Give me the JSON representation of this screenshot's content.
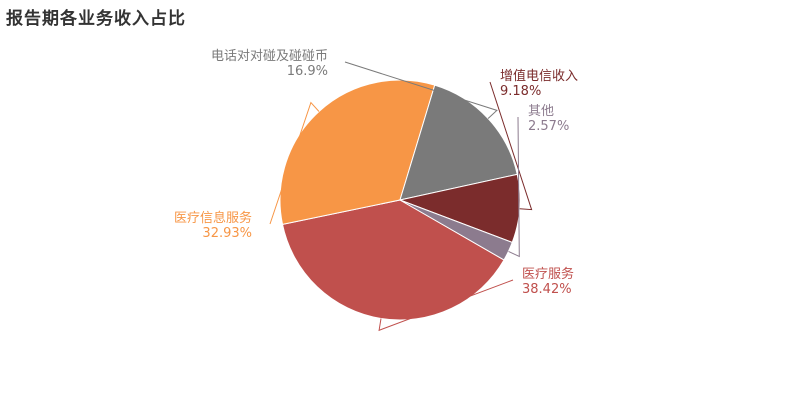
{
  "chart_data": {
    "type": "pie",
    "title": "报告期各业务收入占比",
    "slices": [
      {
        "name": "医疗服务",
        "value": 38.42,
        "label": "38.42%",
        "color": "#c0504d"
      },
      {
        "name": "医疗信息服务",
        "value": 32.93,
        "label": "32.93%",
        "color": "#f79646"
      },
      {
        "name": "电话对对碰及碰碰币",
        "value": 16.9,
        "label": "16.9%",
        "color": "#7a7a7a"
      },
      {
        "name": "增值电信收入",
        "value": 9.18,
        "label": "9.18%",
        "color": "#7b2c2c"
      },
      {
        "name": "其他",
        "value": 2.57,
        "label": "2.57%",
        "color": "#8c7b8e"
      }
    ]
  }
}
